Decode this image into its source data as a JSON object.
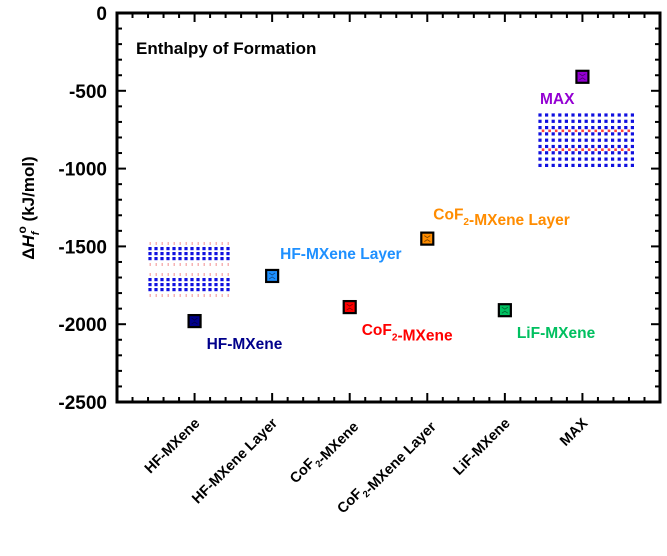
{
  "chart_data": {
    "type": "scatter",
    "title": "Enthalpy of Formation",
    "xlabel": "",
    "ylabel": {
      "prefix": "ΔH",
      "sub": "f",
      "sup": "o",
      "suffix": " (kJ/mol)"
    },
    "ylim": [
      -2500,
      0
    ],
    "yticks": [
      0,
      -500,
      -1000,
      -1500,
      -2000,
      -2500
    ],
    "ytick_labels": [
      "0",
      "-500",
      "-1000",
      "-1500",
      "-2000",
      "-2500"
    ],
    "y_minor_step": 100,
    "xlim": [
      0,
      7
    ],
    "grid": false,
    "legend": "none",
    "categories": [
      {
        "label": "HF-MXene",
        "parts": [
          {
            "t": "HF-MXene"
          }
        ]
      },
      {
        "label": "HF-MXene Layer",
        "parts": [
          {
            "t": "HF-MXene Layer"
          }
        ]
      },
      {
        "label": "CoF2-MXene",
        "parts": [
          {
            "t": "CoF"
          },
          {
            "t": "2",
            "sub": true
          },
          {
            "t": "-MXene"
          }
        ]
      },
      {
        "label": "CoF2-MXene Layer",
        "parts": [
          {
            "t": "CoF"
          },
          {
            "t": "2",
            "sub": true
          },
          {
            "t": "-MXene Layer"
          }
        ]
      },
      {
        "label": "LiF-MXene",
        "parts": [
          {
            "t": "LiF-MXene"
          }
        ]
      },
      {
        "label": "MAX",
        "parts": [
          {
            "t": "MAX"
          }
        ]
      }
    ],
    "points": [
      {
        "x": 1,
        "y": -1980,
        "name": "HF-MXene",
        "color": "#00008b",
        "annotation": [
          {
            "t": "HF-MXene"
          }
        ],
        "anno_pos": "below-right"
      },
      {
        "x": 2,
        "y": -1690,
        "name": "HF-MXene Layer",
        "color": "#1e90ff",
        "annotation": [
          {
            "t": "HF-MXene Layer"
          }
        ],
        "anno_pos": "above-right"
      },
      {
        "x": 3,
        "y": -1890,
        "name": "CoF2-MXene",
        "color": "#ff0000",
        "annotation": [
          {
            "t": "CoF"
          },
          {
            "t": "2",
            "sub": true
          },
          {
            "t": "-MXene"
          }
        ],
        "anno_pos": "below-right"
      },
      {
        "x": 4,
        "y": -1450,
        "name": "CoF2-MXene Layer",
        "color": "#ff8c00",
        "annotation": [
          {
            "t": "CoF"
          },
          {
            "t": "2",
            "sub": true
          },
          {
            "t": "-MXene Layer"
          }
        ],
        "anno_pos": "above-right"
      },
      {
        "x": 5,
        "y": -1910,
        "name": "LiF-MXene",
        "color": "#00c060",
        "annotation": [
          {
            "t": "LiF-MXene"
          }
        ],
        "anno_pos": "below-right"
      },
      {
        "x": 6,
        "y": -410,
        "name": "MAX",
        "color": "#9400d3",
        "annotation": [
          {
            "t": "MAX"
          }
        ],
        "anno_pos": "below-left"
      }
    ],
    "illustrations": [
      {
        "name": "hf-mxene-layered-structure",
        "kind": "two-layer-lattice",
        "dot_color": "#1010e0",
        "accent_color": "#f08080"
      },
      {
        "name": "max-phase-structure",
        "kind": "bulk-lattice",
        "dot_color": "#1010e0",
        "accent_color": "#ff4040"
      }
    ]
  }
}
